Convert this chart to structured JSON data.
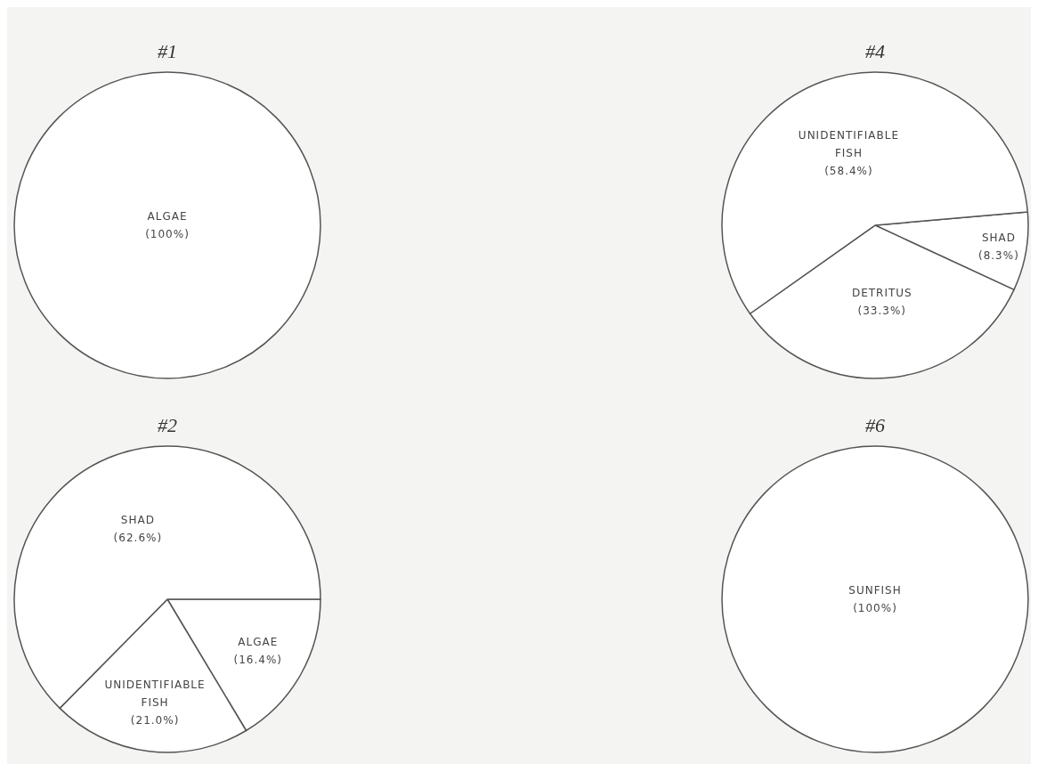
{
  "chart_data": [
    {
      "type": "pie",
      "title": "#1",
      "categories": [
        "ALGAE"
      ],
      "values": [
        100
      ],
      "value_labels": [
        "(100%)"
      ],
      "colors": [
        "#ffffff"
      ]
    },
    {
      "type": "pie",
      "title": "#4",
      "categories": [
        "SHAD",
        "DETRITUS",
        "UNIDENTIFIABLE FISH"
      ],
      "values": [
        8.3,
        33.3,
        58.4
      ],
      "value_labels": [
        "(8.3%)",
        "(33.3%)",
        "(58.4%)"
      ],
      "colors": [
        "#ffffff",
        "#ffffff",
        "#ffffff"
      ]
    },
    {
      "type": "pie",
      "title": "#2",
      "categories": [
        "ALGAE",
        "UNIDENTIFIABLE FISH",
        "SHAD"
      ],
      "values": [
        16.4,
        21.0,
        62.6
      ],
      "value_labels": [
        "(16.4%)",
        "(21.0%)",
        "(62.6%)"
      ],
      "colors": [
        "#ffffff",
        "#ffffff",
        "#ffffff"
      ]
    },
    {
      "type": "pie",
      "title": "#6",
      "categories": [
        "SUNFISH"
      ],
      "values": [
        100
      ],
      "value_labels": [
        "(100%)"
      ],
      "colors": [
        "#ffffff"
      ]
    }
  ]
}
